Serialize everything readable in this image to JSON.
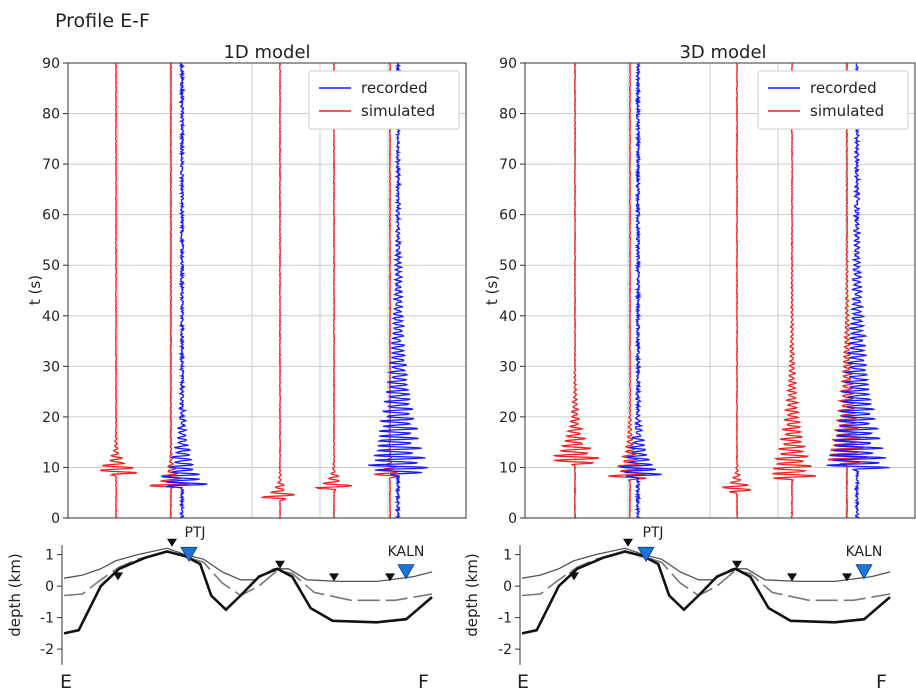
{
  "figure": {
    "title": "Profile E-F",
    "end_left": "E",
    "end_right": "F"
  },
  "colors": {
    "recorded": "#1a1aff",
    "simulated": "#ee2222",
    "grid": "#cccccc",
    "station": "#111111",
    "station_highlight": "#1e73d6"
  },
  "chart_data": [
    {
      "type": "line",
      "title": "1D model",
      "ylabel": "t (s)",
      "ylim": [
        0,
        90
      ],
      "yticks": [
        0,
        10,
        20,
        30,
        40,
        50,
        60,
        70,
        80,
        90
      ],
      "grid": true,
      "legend": {
        "placement": "top-right",
        "entries": [
          "recorded",
          "simulated"
        ]
      },
      "series": [
        {
          "name": "simulated",
          "trace": 1,
          "arrival_s": 9,
          "duration_s": 4,
          "amplitude": 0.9
        },
        {
          "name": "simulated",
          "trace": 2,
          "arrival_s": 6.5,
          "duration_s": 4,
          "amplitude": 0.75
        },
        {
          "name": "recorded",
          "trace": 2,
          "arrival_s": 6.5,
          "duration_s": 12,
          "amplitude": 0.8
        },
        {
          "name": "simulated",
          "trace": 3,
          "arrival_s": 4,
          "duration_s": 3,
          "amplitude": 0.7
        },
        {
          "name": "simulated",
          "trace": 4,
          "arrival_s": 6,
          "duration_s": 3,
          "amplitude": 0.7
        },
        {
          "name": "simulated",
          "trace": 5,
          "arrival_s": 8.5,
          "duration_s": 3,
          "amplitude": 0.55
        },
        {
          "name": "recorded",
          "trace": 5,
          "arrival_s": 9,
          "duration_s": 35,
          "amplitude": 1.0
        }
      ]
    },
    {
      "type": "line",
      "title": "3D model",
      "ylabel": "t (s)",
      "ylim": [
        0,
        90
      ],
      "yticks": [
        0,
        10,
        20,
        30,
        40,
        50,
        60,
        70,
        80,
        90
      ],
      "grid": true,
      "legend": {
        "placement": "top-right",
        "entries": [
          "recorded",
          "simulated"
        ]
      },
      "series": [
        {
          "name": "simulated",
          "trace": 1,
          "arrival_s": 11,
          "duration_s": 10,
          "amplitude": 0.9
        },
        {
          "name": "simulated",
          "trace": 2,
          "arrival_s": 8,
          "duration_s": 8,
          "amplitude": 0.7
        },
        {
          "name": "recorded",
          "trace": 2,
          "arrival_s": 8.5,
          "duration_s": 10,
          "amplitude": 0.8
        },
        {
          "name": "simulated",
          "trace": 3,
          "arrival_s": 5.5,
          "duration_s": 3,
          "amplitude": 0.75
        },
        {
          "name": "simulated",
          "trace": 4,
          "arrival_s": 8,
          "duration_s": 22,
          "amplitude": 0.75
        },
        {
          "name": "simulated",
          "trace": 5,
          "arrival_s": 11,
          "duration_s": 24,
          "amplitude": 0.7
        },
        {
          "name": "recorded",
          "trace": 5,
          "arrival_s": 10,
          "duration_s": 38,
          "amplitude": 1.0
        }
      ]
    }
  ],
  "profile": {
    "ylabel": "depth (km)",
    "ylim": [
      -2.6,
      1.4
    ],
    "yticks": [
      1,
      0,
      -1,
      -2
    ],
    "stations_labeled": [
      "PTJ",
      "KALN"
    ],
    "surface_km": [
      [
        0,
        0.25
      ],
      [
        0.05,
        0.35
      ],
      [
        0.1,
        0.55
      ],
      [
        0.14,
        0.8
      ],
      [
        0.2,
        1.0
      ],
      [
        0.28,
        1.2
      ],
      [
        0.33,
        1.0
      ],
      [
        0.38,
        0.85
      ],
      [
        0.43,
        0.45
      ],
      [
        0.48,
        0.2
      ],
      [
        0.52,
        0.2
      ],
      [
        0.57,
        0.55
      ],
      [
        0.61,
        0.55
      ],
      [
        0.66,
        0.2
      ],
      [
        0.75,
        0.15
      ],
      [
        0.85,
        0.15
      ],
      [
        0.95,
        0.3
      ],
      [
        1,
        0.45
      ]
    ],
    "layer_km": [
      [
        0,
        -0.3
      ],
      [
        0.05,
        -0.25
      ],
      [
        0.1,
        0.2
      ],
      [
        0.15,
        0.6
      ],
      [
        0.2,
        0.85
      ],
      [
        0.28,
        1.1
      ],
      [
        0.33,
        0.95
      ],
      [
        0.38,
        0.75
      ],
      [
        0.43,
        0.1
      ],
      [
        0.48,
        -0.3
      ],
      [
        0.53,
        0.0
      ],
      [
        0.58,
        0.5
      ],
      [
        0.62,
        0.4
      ],
      [
        0.68,
        -0.2
      ],
      [
        0.78,
        -0.45
      ],
      [
        0.9,
        -0.45
      ],
      [
        1,
        -0.25
      ]
    ],
    "basement_km": [
      [
        0,
        -1.5
      ],
      [
        0.04,
        -1.4
      ],
      [
        0.1,
        0.0
      ],
      [
        0.15,
        0.55
      ],
      [
        0.22,
        0.9
      ],
      [
        0.28,
        1.1
      ],
      [
        0.33,
        0.95
      ],
      [
        0.37,
        0.7
      ],
      [
        0.4,
        -0.3
      ],
      [
        0.44,
        -0.75
      ],
      [
        0.48,
        -0.3
      ],
      [
        0.53,
        0.3
      ],
      [
        0.58,
        0.55
      ],
      [
        0.62,
        0.3
      ],
      [
        0.67,
        -0.7
      ],
      [
        0.73,
        -1.1
      ],
      [
        0.85,
        -1.15
      ],
      [
        0.93,
        -1.05
      ],
      [
        1,
        -0.35
      ]
    ]
  }
}
